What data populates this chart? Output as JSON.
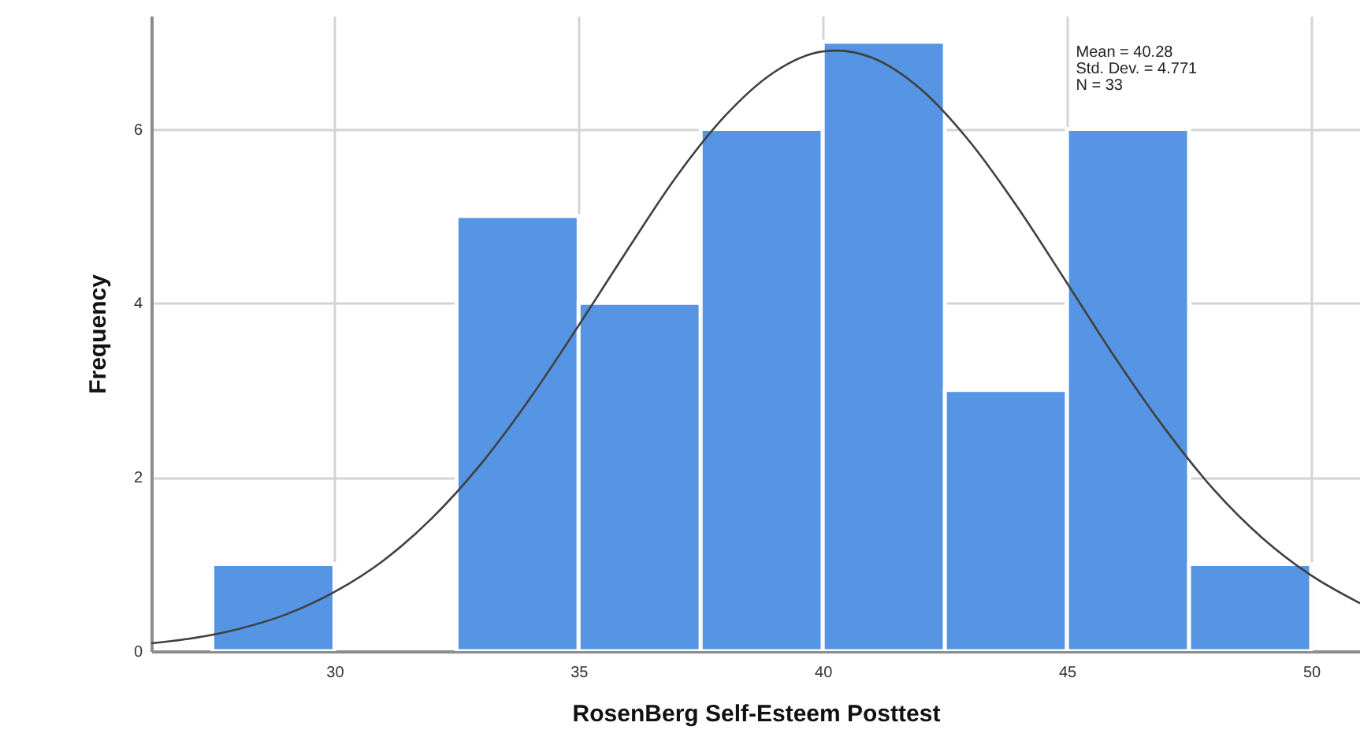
{
  "chart_data": {
    "type": "histogram",
    "xlabel": "RosenBerg Self-Esteem Posttest",
    "ylabel": "Frequency",
    "bins": [
      27.5,
      30,
      32.5,
      35,
      37.5,
      40,
      42.5,
      45,
      47.5,
      50
    ],
    "series": [
      {
        "color": "#5595e3",
        "values": [
          1,
          0,
          5,
          4,
          6,
          7,
          3,
          6,
          1
        ]
      },
      {
        "type": "line",
        "color": "#404040",
        "x": [
          26.25,
          27,
          28,
          29,
          30,
          31,
          32,
          33,
          34,
          35,
          36,
          37,
          38,
          39,
          40,
          40.28,
          41,
          42,
          43,
          44,
          45,
          46,
          47,
          48,
          49,
          50,
          51
        ],
        "values": [
          0.09,
          0.14,
          0.25,
          0.42,
          0.68,
          1.04,
          1.53,
          2.15,
          2.9,
          3.74,
          4.61,
          5.45,
          6.15,
          6.65,
          6.89,
          6.9,
          6.82,
          6.46,
          5.86,
          5.09,
          4.23,
          3.36,
          2.56,
          1.86,
          1.3,
          0.87,
          0.55
        ]
      }
    ],
    "annotations": [
      "Mean = 40.28",
      "Std. Dev. = 4.771",
      "N = 33"
    ],
    "xlim": [
      26.25,
      51
    ],
    "ylim": [
      0,
      7.3
    ],
    "xticks": [
      30,
      35,
      40,
      45,
      50
    ],
    "yticks": [
      0,
      2,
      4,
      6
    ],
    "grid": true
  }
}
